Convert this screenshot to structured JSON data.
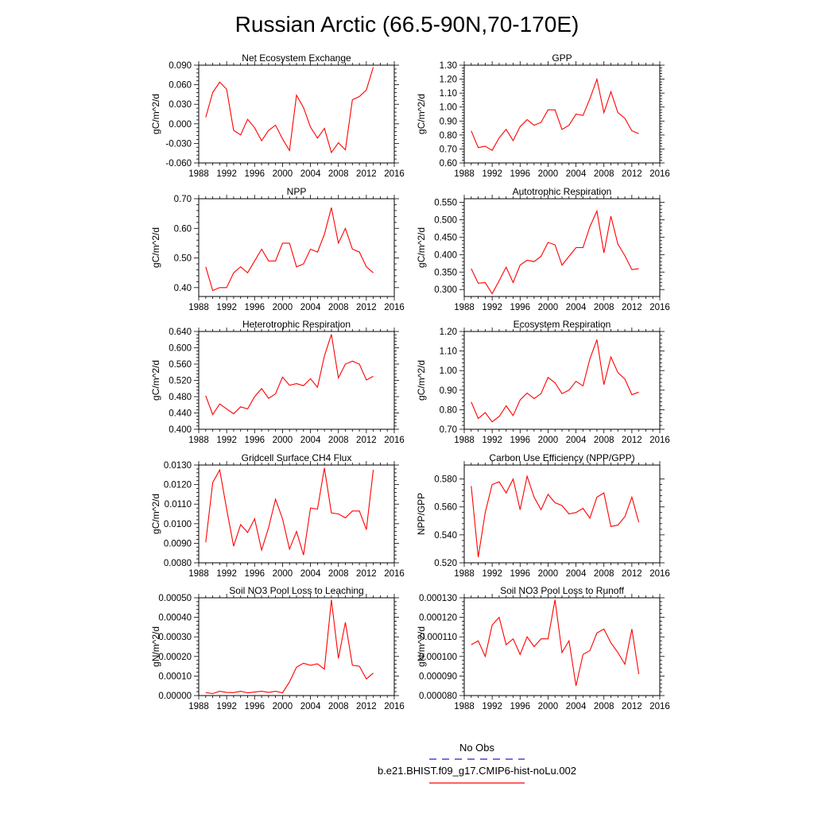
{
  "figure": {
    "title": "Russian Arctic (66.5-90N,70-170E)"
  },
  "legend": {
    "items": [
      {
        "label": "No Obs",
        "color": "#2222cc",
        "style": "dashed"
      },
      {
        "label": "b.e21.BHIST.f09_g17.CMIP6-hist-noLu.002",
        "color": "#ff0000",
        "style": "solid"
      }
    ]
  },
  "chart_data": [
    {
      "type": "line",
      "title": "Net Ecosystem Exchange",
      "ylabel": "gC/m^2/d",
      "xlabel": "",
      "xlim": [
        1988,
        2016
      ],
      "xticks": [
        "1988",
        "1992",
        "1996",
        "2000",
        "2004",
        "2008",
        "2012",
        "2016"
      ],
      "ylim": [
        -0.06,
        0.09
      ],
      "yticks": [
        "-0.060",
        "-0.030",
        "0.000",
        "0.030",
        "0.060",
        "0.090"
      ],
      "series": [
        {
          "color": "#ff0000",
          "x": [
            1989,
            1990,
            1991,
            1992,
            1993,
            1994,
            1995,
            1996,
            1997,
            1998,
            1999,
            2000,
            2001,
            2002,
            2003,
            2004,
            2005,
            2006,
            2007,
            2008,
            2009,
            2010,
            2011,
            2012,
            2013
          ],
          "values": [
            0.01,
            0.048,
            0.064,
            0.053,
            -0.01,
            -0.017,
            0.007,
            -0.006,
            -0.026,
            -0.01,
            -0.002,
            -0.023,
            -0.041,
            0.044,
            0.025,
            -0.005,
            -0.022,
            -0.007,
            -0.044,
            -0.029,
            -0.04,
            0.037,
            0.042,
            0.052,
            0.087
          ]
        }
      ]
    },
    {
      "type": "line",
      "title": "GPP",
      "ylabel": "gC/m^2/d",
      "xlabel": "",
      "xlim": [
        1988,
        2016
      ],
      "xticks": [
        "1988",
        "1992",
        "1996",
        "2000",
        "2004",
        "2008",
        "2012",
        "2016"
      ],
      "ylim": [
        0.6,
        1.3
      ],
      "yticks": [
        "0.60",
        "0.70",
        "0.80",
        "0.90",
        "1.00",
        "1.10",
        "1.20",
        "1.30"
      ],
      "series": [
        {
          "color": "#ff0000",
          "x": [
            1989,
            1990,
            1991,
            1992,
            1993,
            1994,
            1995,
            1996,
            1997,
            1998,
            1999,
            2000,
            2001,
            2002,
            2003,
            2004,
            2005,
            2006,
            2007,
            2008,
            2009,
            2010,
            2011,
            2012,
            2013
          ],
          "values": [
            0.83,
            0.71,
            0.72,
            0.69,
            0.78,
            0.84,
            0.76,
            0.86,
            0.91,
            0.87,
            0.89,
            0.98,
            0.98,
            0.84,
            0.87,
            0.95,
            0.94,
            1.06,
            1.2,
            0.96,
            1.11,
            0.96,
            0.92,
            0.83,
            0.81
          ]
        }
      ]
    },
    {
      "type": "line",
      "title": "NPP",
      "ylabel": "gC/m^2/d",
      "xlabel": "",
      "xlim": [
        1988,
        2016
      ],
      "xticks": [
        "1988",
        "1992",
        "1996",
        "2000",
        "2004",
        "2008",
        "2012",
        "2016"
      ],
      "ylim": [
        0.37,
        0.7
      ],
      "yticks": [
        "0.40",
        "0.50",
        "0.60",
        "0.70"
      ],
      "ytickvals": [
        0.4,
        0.5,
        0.6,
        0.7
      ],
      "series": [
        {
          "color": "#ff0000",
          "x": [
            1989,
            1990,
            1991,
            1992,
            1993,
            1994,
            1995,
            1996,
            1997,
            1998,
            1999,
            2000,
            2001,
            2002,
            2003,
            2004,
            2005,
            2006,
            2007,
            2008,
            2009,
            2010,
            2011,
            2012,
            2013
          ],
          "values": [
            0.47,
            0.39,
            0.4,
            0.4,
            0.45,
            0.47,
            0.45,
            0.49,
            0.53,
            0.49,
            0.49,
            0.55,
            0.55,
            0.47,
            0.48,
            0.53,
            0.52,
            0.58,
            0.67,
            0.55,
            0.6,
            0.53,
            0.52,
            0.47,
            0.45
          ]
        }
      ]
    },
    {
      "type": "line",
      "title": "Autotrophic Respiration",
      "ylabel": "gC/m^2/d",
      "xlabel": "",
      "xlim": [
        1988,
        2016
      ],
      "xticks": [
        "1988",
        "1992",
        "1996",
        "2000",
        "2004",
        "2008",
        "2012",
        "2016"
      ],
      "ylim": [
        0.28,
        0.56
      ],
      "yticks": [
        "0.300",
        "0.350",
        "0.400",
        "0.450",
        "0.500",
        "0.550"
      ],
      "ytickvals": [
        0.3,
        0.35,
        0.4,
        0.45,
        0.5,
        0.55
      ],
      "series": [
        {
          "color": "#ff0000",
          "x": [
            1989,
            1990,
            1991,
            1992,
            1993,
            1994,
            1995,
            1996,
            1997,
            1998,
            1999,
            2000,
            2001,
            2002,
            2003,
            2004,
            2005,
            2006,
            2007,
            2008,
            2009,
            2010,
            2011,
            2012,
            2013
          ],
          "values": [
            0.36,
            0.318,
            0.32,
            0.288,
            0.325,
            0.364,
            0.32,
            0.37,
            0.384,
            0.38,
            0.395,
            0.435,
            0.428,
            0.37,
            0.395,
            0.42,
            0.42,
            0.48,
            0.525,
            0.405,
            0.51,
            0.43,
            0.397,
            0.357,
            0.36
          ]
        }
      ]
    },
    {
      "type": "line",
      "title": "Heterotrophic Respiration",
      "ylabel": "gC/m^2/d",
      "xlabel": "",
      "xlim": [
        1988,
        2016
      ],
      "xticks": [
        "1988",
        "1992",
        "1996",
        "2000",
        "2004",
        "2008",
        "2012",
        "2016"
      ],
      "ylim": [
        0.4,
        0.64
      ],
      "yticks": [
        "0.400",
        "0.440",
        "0.480",
        "0.520",
        "0.560",
        "0.600",
        "0.640"
      ],
      "series": [
        {
          "color": "#ff0000",
          "x": [
            1989,
            1990,
            1991,
            1992,
            1993,
            1994,
            1995,
            1996,
            1997,
            1998,
            1999,
            2000,
            2001,
            2002,
            2003,
            2004,
            2005,
            2006,
            2007,
            2008,
            2009,
            2010,
            2011,
            2012,
            2013
          ],
          "values": [
            0.482,
            0.436,
            0.462,
            0.45,
            0.438,
            0.455,
            0.45,
            0.48,
            0.5,
            0.476,
            0.487,
            0.528,
            0.508,
            0.512,
            0.507,
            0.524,
            0.503,
            0.58,
            0.633,
            0.526,
            0.56,
            0.567,
            0.56,
            0.521,
            0.53
          ]
        }
      ]
    },
    {
      "type": "line",
      "title": "Ecosystem Respiration",
      "ylabel": "gC/m^2/d",
      "xlabel": "",
      "xlim": [
        1988,
        2016
      ],
      "xticks": [
        "1988",
        "1992",
        "1996",
        "2000",
        "2004",
        "2008",
        "2012",
        "2016"
      ],
      "ylim": [
        0.7,
        1.2
      ],
      "yticks": [
        "0.70",
        "0.80",
        "0.90",
        "1.00",
        "1.10",
        "1.20"
      ],
      "series": [
        {
          "color": "#ff0000",
          "x": [
            1989,
            1990,
            1991,
            1992,
            1993,
            1994,
            1995,
            1996,
            1997,
            1998,
            1999,
            2000,
            2001,
            2002,
            2003,
            2004,
            2005,
            2006,
            2007,
            2008,
            2009,
            2010,
            2011,
            2012,
            2013
          ],
          "values": [
            0.84,
            0.755,
            0.785,
            0.738,
            0.765,
            0.82,
            0.77,
            0.85,
            0.885,
            0.857,
            0.882,
            0.965,
            0.938,
            0.882,
            0.9,
            0.945,
            0.922,
            1.06,
            1.158,
            0.928,
            1.07,
            0.99,
            0.957,
            0.877,
            0.89
          ]
        }
      ]
    },
    {
      "type": "line",
      "title": "Gridcell Surface CH4 Flux",
      "ylabel": "gC/m^2/d",
      "xlabel": "",
      "xlim": [
        1988,
        2016
      ],
      "xticks": [
        "1988",
        "1992",
        "1996",
        "2000",
        "2004",
        "2008",
        "2012",
        "2016"
      ],
      "ylim": [
        0.008,
        0.013
      ],
      "yticks": [
        "0.0080",
        "0.0090",
        "0.0100",
        "0.0110",
        "0.0120",
        "0.0130"
      ],
      "series": [
        {
          "color": "#ff0000",
          "x": [
            1989,
            1990,
            1991,
            1992,
            1993,
            1994,
            1995,
            1996,
            1997,
            1998,
            1999,
            2000,
            2001,
            2002,
            2003,
            2004,
            2005,
            2006,
            2007,
            2008,
            2009,
            2010,
            2011,
            2012,
            2013
          ],
          "values": [
            0.00905,
            0.0121,
            0.01275,
            0.01075,
            0.00885,
            0.00995,
            0.00955,
            0.01025,
            0.00865,
            0.0098,
            0.01125,
            0.01025,
            0.0087,
            0.0096,
            0.0084,
            0.0108,
            0.01075,
            0.01285,
            0.01055,
            0.0105,
            0.0103,
            0.01065,
            0.01065,
            0.0097,
            0.01275
          ]
        }
      ]
    },
    {
      "type": "line",
      "title": "Carbon Use Efficiency (NPP/GPP)",
      "ylabel": "NPP/GPP",
      "xlabel": "",
      "xlim": [
        1988,
        2016
      ],
      "xticks": [
        "1988",
        "1992",
        "1996",
        "2000",
        "2004",
        "2008",
        "2012",
        "2016"
      ],
      "ylim": [
        0.52,
        0.59
      ],
      "yticks": [
        "0.520",
        "0.540",
        "0.560",
        "0.580"
      ],
      "ytickvals": [
        0.52,
        0.54,
        0.56,
        0.58
      ],
      "series": [
        {
          "color": "#ff0000",
          "x": [
            1989,
            1990,
            1991,
            1992,
            1993,
            1994,
            1995,
            1996,
            1997,
            1998,
            1999,
            2000,
            2001,
            2002,
            2003,
            2004,
            2005,
            2006,
            2007,
            2008,
            2009,
            2010,
            2011,
            2012,
            2013
          ],
          "values": [
            0.575,
            0.524,
            0.556,
            0.576,
            0.578,
            0.57,
            0.58,
            0.558,
            0.582,
            0.567,
            0.558,
            0.569,
            0.563,
            0.561,
            0.555,
            0.556,
            0.559,
            0.552,
            0.567,
            0.57,
            0.546,
            0.547,
            0.553,
            0.567,
            0.549
          ]
        }
      ]
    },
    {
      "type": "line",
      "title": "Soil NO3 Pool Loss to Leaching",
      "ylabel": "gN/m^2/d",
      "xlabel": "",
      "xlim": [
        1988,
        2016
      ],
      "xticks": [
        "1988",
        "1992",
        "1996",
        "2000",
        "2004",
        "2008",
        "2012",
        "2016"
      ],
      "ylim": [
        0.0,
        0.0005
      ],
      "yticks": [
        "0.00000",
        "0.00010",
        "0.00020",
        "0.00030",
        "0.00040",
        "0.00050"
      ],
      "series": [
        {
          "color": "#ff0000",
          "x": [
            1989,
            1990,
            1991,
            1992,
            1993,
            1994,
            1995,
            1996,
            1997,
            1998,
            1999,
            2000,
            2001,
            2002,
            2003,
            2004,
            2005,
            2006,
            2007,
            2008,
            2009,
            2010,
            2011,
            2012,
            2013
          ],
          "values": [
            1.5e-05,
            1e-05,
            2.2e-05,
            1.6e-05,
            1.5e-05,
            2.2e-05,
            1.4e-05,
            1.8e-05,
            2.2e-05,
            1.6e-05,
            2.2e-05,
            1.4e-05,
            7e-05,
            0.000145,
            0.000165,
            0.000155,
            0.000162,
            0.000135,
            0.00049,
            0.00019,
            0.000375,
            0.000155,
            0.00015,
            8.5e-05,
            0.000115
          ]
        }
      ]
    },
    {
      "type": "line",
      "title": "Soil NO3 Pool Loss to Runoff",
      "ylabel": "gN/m^2/d",
      "xlabel": "",
      "xlim": [
        1988,
        2016
      ],
      "xticks": [
        "1988",
        "1992",
        "1996",
        "2000",
        "2004",
        "2008",
        "2012",
        "2016"
      ],
      "ylim": [
        8e-05,
        0.00013
      ],
      "yticks": [
        "0.000080",
        "0.000090",
        "0.000100",
        "0.000110",
        "0.000120",
        "0.000130"
      ],
      "series": [
        {
          "color": "#ff0000",
          "x": [
            1989,
            1990,
            1991,
            1992,
            1993,
            1994,
            1995,
            1996,
            1997,
            1998,
            1999,
            2000,
            2001,
            2002,
            2003,
            2004,
            2005,
            2006,
            2007,
            2008,
            2009,
            2010,
            2011,
            2012,
            2013
          ],
          "values": [
            0.000106,
            0.000108,
            0.0001,
            0.000116,
            0.00012,
            0.000106,
            0.000109,
            0.000101,
            0.00011,
            0.000105,
            0.000109,
            0.000109,
            0.000129,
            0.000102,
            0.000108,
            8.5e-05,
            0.000101,
            0.000103,
            0.000112,
            0.000114,
            0.000107,
            0.000102,
            9.6e-05,
            0.000114,
            9.1e-05
          ]
        }
      ]
    }
  ]
}
